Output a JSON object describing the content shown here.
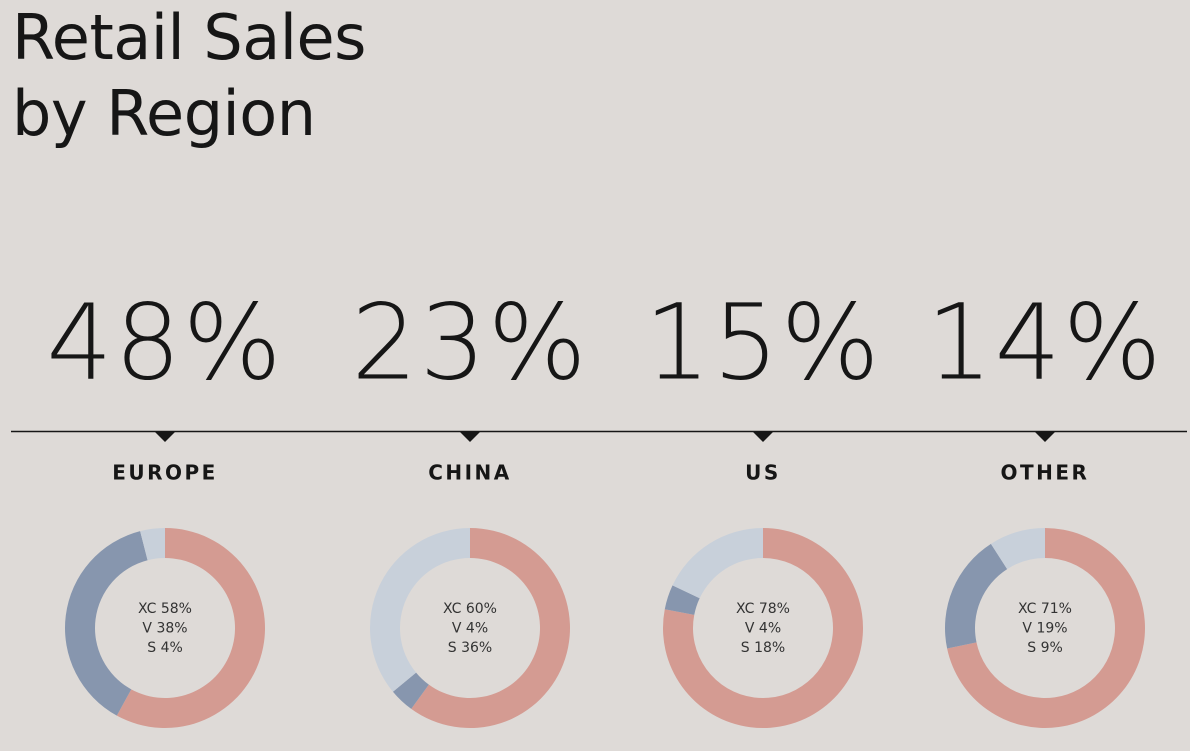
{
  "title": "Retail Sales by Region",
  "chart_data": [
    {
      "type": "donut",
      "title": "EUROPE",
      "share": "48%",
      "categories": [
        "XC",
        "V",
        "S"
      ],
      "values": [
        58,
        38,
        4
      ],
      "value_labels": [
        "58%",
        "38%",
        "4%"
      ],
      "colors": [
        "#d49b92",
        "#8796ae",
        "#c8d0da"
      ]
    },
    {
      "type": "donut",
      "title": "CHINA",
      "share": "23%",
      "categories": [
        "XC",
        "V",
        "S"
      ],
      "values": [
        60,
        4,
        36
      ],
      "value_labels": [
        "60%",
        "4%",
        "36%"
      ],
      "colors": [
        "#d49b92",
        "#8796ae",
        "#c8d0da"
      ]
    },
    {
      "type": "donut",
      "title": "US",
      "share": "15%",
      "categories": [
        "XC",
        "V",
        "S"
      ],
      "values": [
        78,
        4,
        18
      ],
      "value_labels": [
        "78%",
        "4%",
        "18%"
      ],
      "colors": [
        "#d49b92",
        "#8796ae",
        "#c8d0da"
      ]
    },
    {
      "type": "donut",
      "title": "OTHER",
      "share": "14%",
      "categories": [
        "XC",
        "V",
        "S"
      ],
      "values": [
        71,
        19,
        9
      ],
      "value_labels": [
        "71%",
        "19%",
        "9%"
      ],
      "colors": [
        "#d49b92",
        "#8796ae",
        "#c8d0da"
      ]
    }
  ]
}
